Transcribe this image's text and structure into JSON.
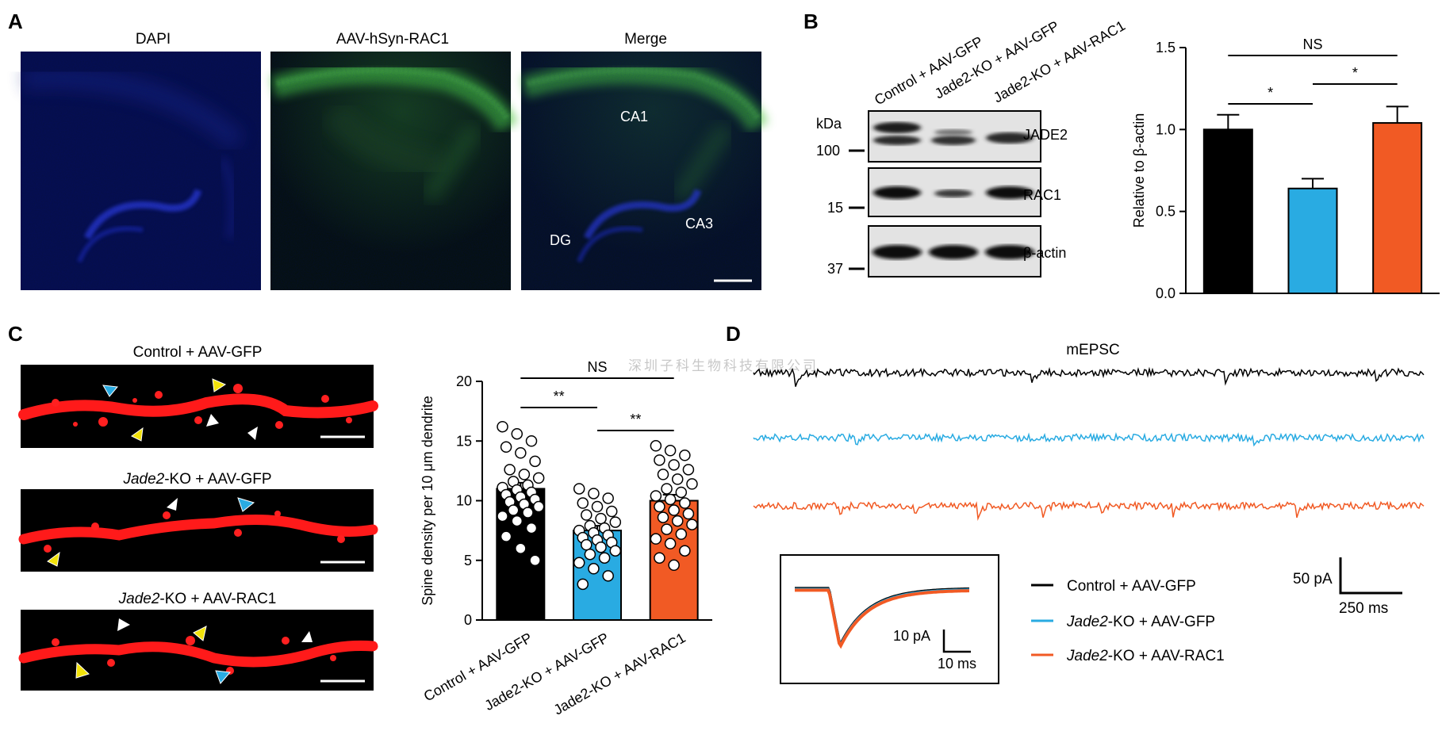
{
  "panels": {
    "a": {
      "letter": "A",
      "titles": [
        "DAPI",
        "AAV-hSyn-RAC1",
        "Merge"
      ],
      "region_labels": [
        "CA1",
        "DG",
        "CA3"
      ]
    },
    "b": {
      "letter": "B",
      "lanes": [
        "Control + AAV-GFP",
        "Jade2-KO + AAV-GFP",
        "Jade2-KO + AAV-RAC1"
      ],
      "kda_label": "kDa",
      "blots": [
        {
          "protein": "JADE2",
          "marker": "100"
        },
        {
          "protein": "RAC1",
          "marker": "15"
        },
        {
          "protein": "β-actin",
          "marker": "37"
        }
      ]
    },
    "c": {
      "letter": "C",
      "image_titles": [
        {
          "italic": "",
          "plain": "Control + AAV-GFP"
        },
        {
          "italic": "Jade2",
          "plain": "-KO + AAV-GFP"
        },
        {
          "italic": "Jade2",
          "plain": "-KO + AAV-RAC1"
        }
      ]
    },
    "d": {
      "letter": "D",
      "trace_title": "mEPSC",
      "trace_colors": [
        "#000000",
        "#29abe2",
        "#f15a24"
      ],
      "legend": [
        {
          "italic": "",
          "plain": "Control + AAV-GFP",
          "color": "#000000"
        },
        {
          "italic": "Jade2",
          "plain": "-KO + AAV-GFP",
          "color": "#29abe2"
        },
        {
          "italic": "Jade2",
          "plain": "-KO + AAV-RAC1",
          "color": "#f15a24"
        }
      ],
      "scale_main": {
        "y": "50 pA",
        "x": "250 ms"
      },
      "scale_inset": {
        "y": "10 pA",
        "x": "10 ms"
      }
    }
  },
  "watermark": "深圳子科生物科技有限公司",
  "chart_data": [
    {
      "type": "bar",
      "panel": "B",
      "categories": [
        "Control + AAV-GFP",
        "Jade2-KO + AAV-GFP",
        "Jade2-KO + AAV-RAC1"
      ],
      "values": [
        1.0,
        0.64,
        1.04
      ],
      "errors": [
        0.09,
        0.06,
        0.1
      ],
      "colors": [
        "#000000",
        "#29abe2",
        "#f15a24"
      ],
      "ylabel": "Relative to β-actin",
      "ylim": [
        0,
        1.5
      ],
      "yticks": [
        0.0,
        0.5,
        1.0,
        1.5
      ],
      "ytick_labels": [
        "0.0",
        "0.5",
        "1.0",
        "1.5"
      ],
      "significance": [
        {
          "from": 0,
          "to": 2,
          "label": "NS"
        },
        {
          "from": 0,
          "to": 1,
          "label": "*"
        },
        {
          "from": 1,
          "to": 2,
          "label": "*"
        }
      ]
    },
    {
      "type": "bar",
      "panel": "C",
      "categories": [
        "Control + AAV-GFP",
        "Jade2-KO + AAV-GFP",
        "Jade2-KO + AAV-RAC1"
      ],
      "values": [
        11.0,
        7.5,
        10.0
      ],
      "errors": [
        0.5,
        0.4,
        0.5
      ],
      "colors": [
        "#000000",
        "#29abe2",
        "#f15a24"
      ],
      "ylabel": "Spine density per 10 μm dendrite",
      "ylim": [
        0,
        20
      ],
      "yticks": [
        0,
        5,
        10,
        15,
        20
      ],
      "ytick_labels": [
        "0",
        "5",
        "10",
        "15",
        "20"
      ],
      "points": [
        [
          16.2,
          15.6,
          15.0,
          14.5,
          14.0,
          13.3,
          12.6,
          12.2,
          11.9,
          11.6,
          11.3,
          11.1,
          10.9,
          10.7,
          10.5,
          10.3,
          10.1,
          9.9,
          9.7,
          9.5,
          9.2,
          9.0,
          8.7,
          8.3,
          7.7,
          7.0,
          6.0,
          5.0
        ],
        [
          11.0,
          10.6,
          10.2,
          9.8,
          9.5,
          9.1,
          8.8,
          8.5,
          8.2,
          7.9,
          7.7,
          7.5,
          7.3,
          7.1,
          6.9,
          6.7,
          6.5,
          6.3,
          6.1,
          5.8,
          5.5,
          5.2,
          4.8,
          4.3,
          3.7,
          3.0
        ],
        [
          14.6,
          14.2,
          13.8,
          13.4,
          13.0,
          12.6,
          12.2,
          11.8,
          11.4,
          11.0,
          10.7,
          10.4,
          10.1,
          9.8,
          9.5,
          9.2,
          8.9,
          8.6,
          8.3,
          8.0,
          7.6,
          7.2,
          6.8,
          6.4,
          5.8,
          5.2,
          4.6
        ]
      ],
      "significance": [
        {
          "from": 0,
          "to": 2,
          "label": "NS"
        },
        {
          "from": 0,
          "to": 1,
          "label": "**"
        },
        {
          "from": 1,
          "to": 2,
          "label": "**"
        }
      ]
    }
  ]
}
